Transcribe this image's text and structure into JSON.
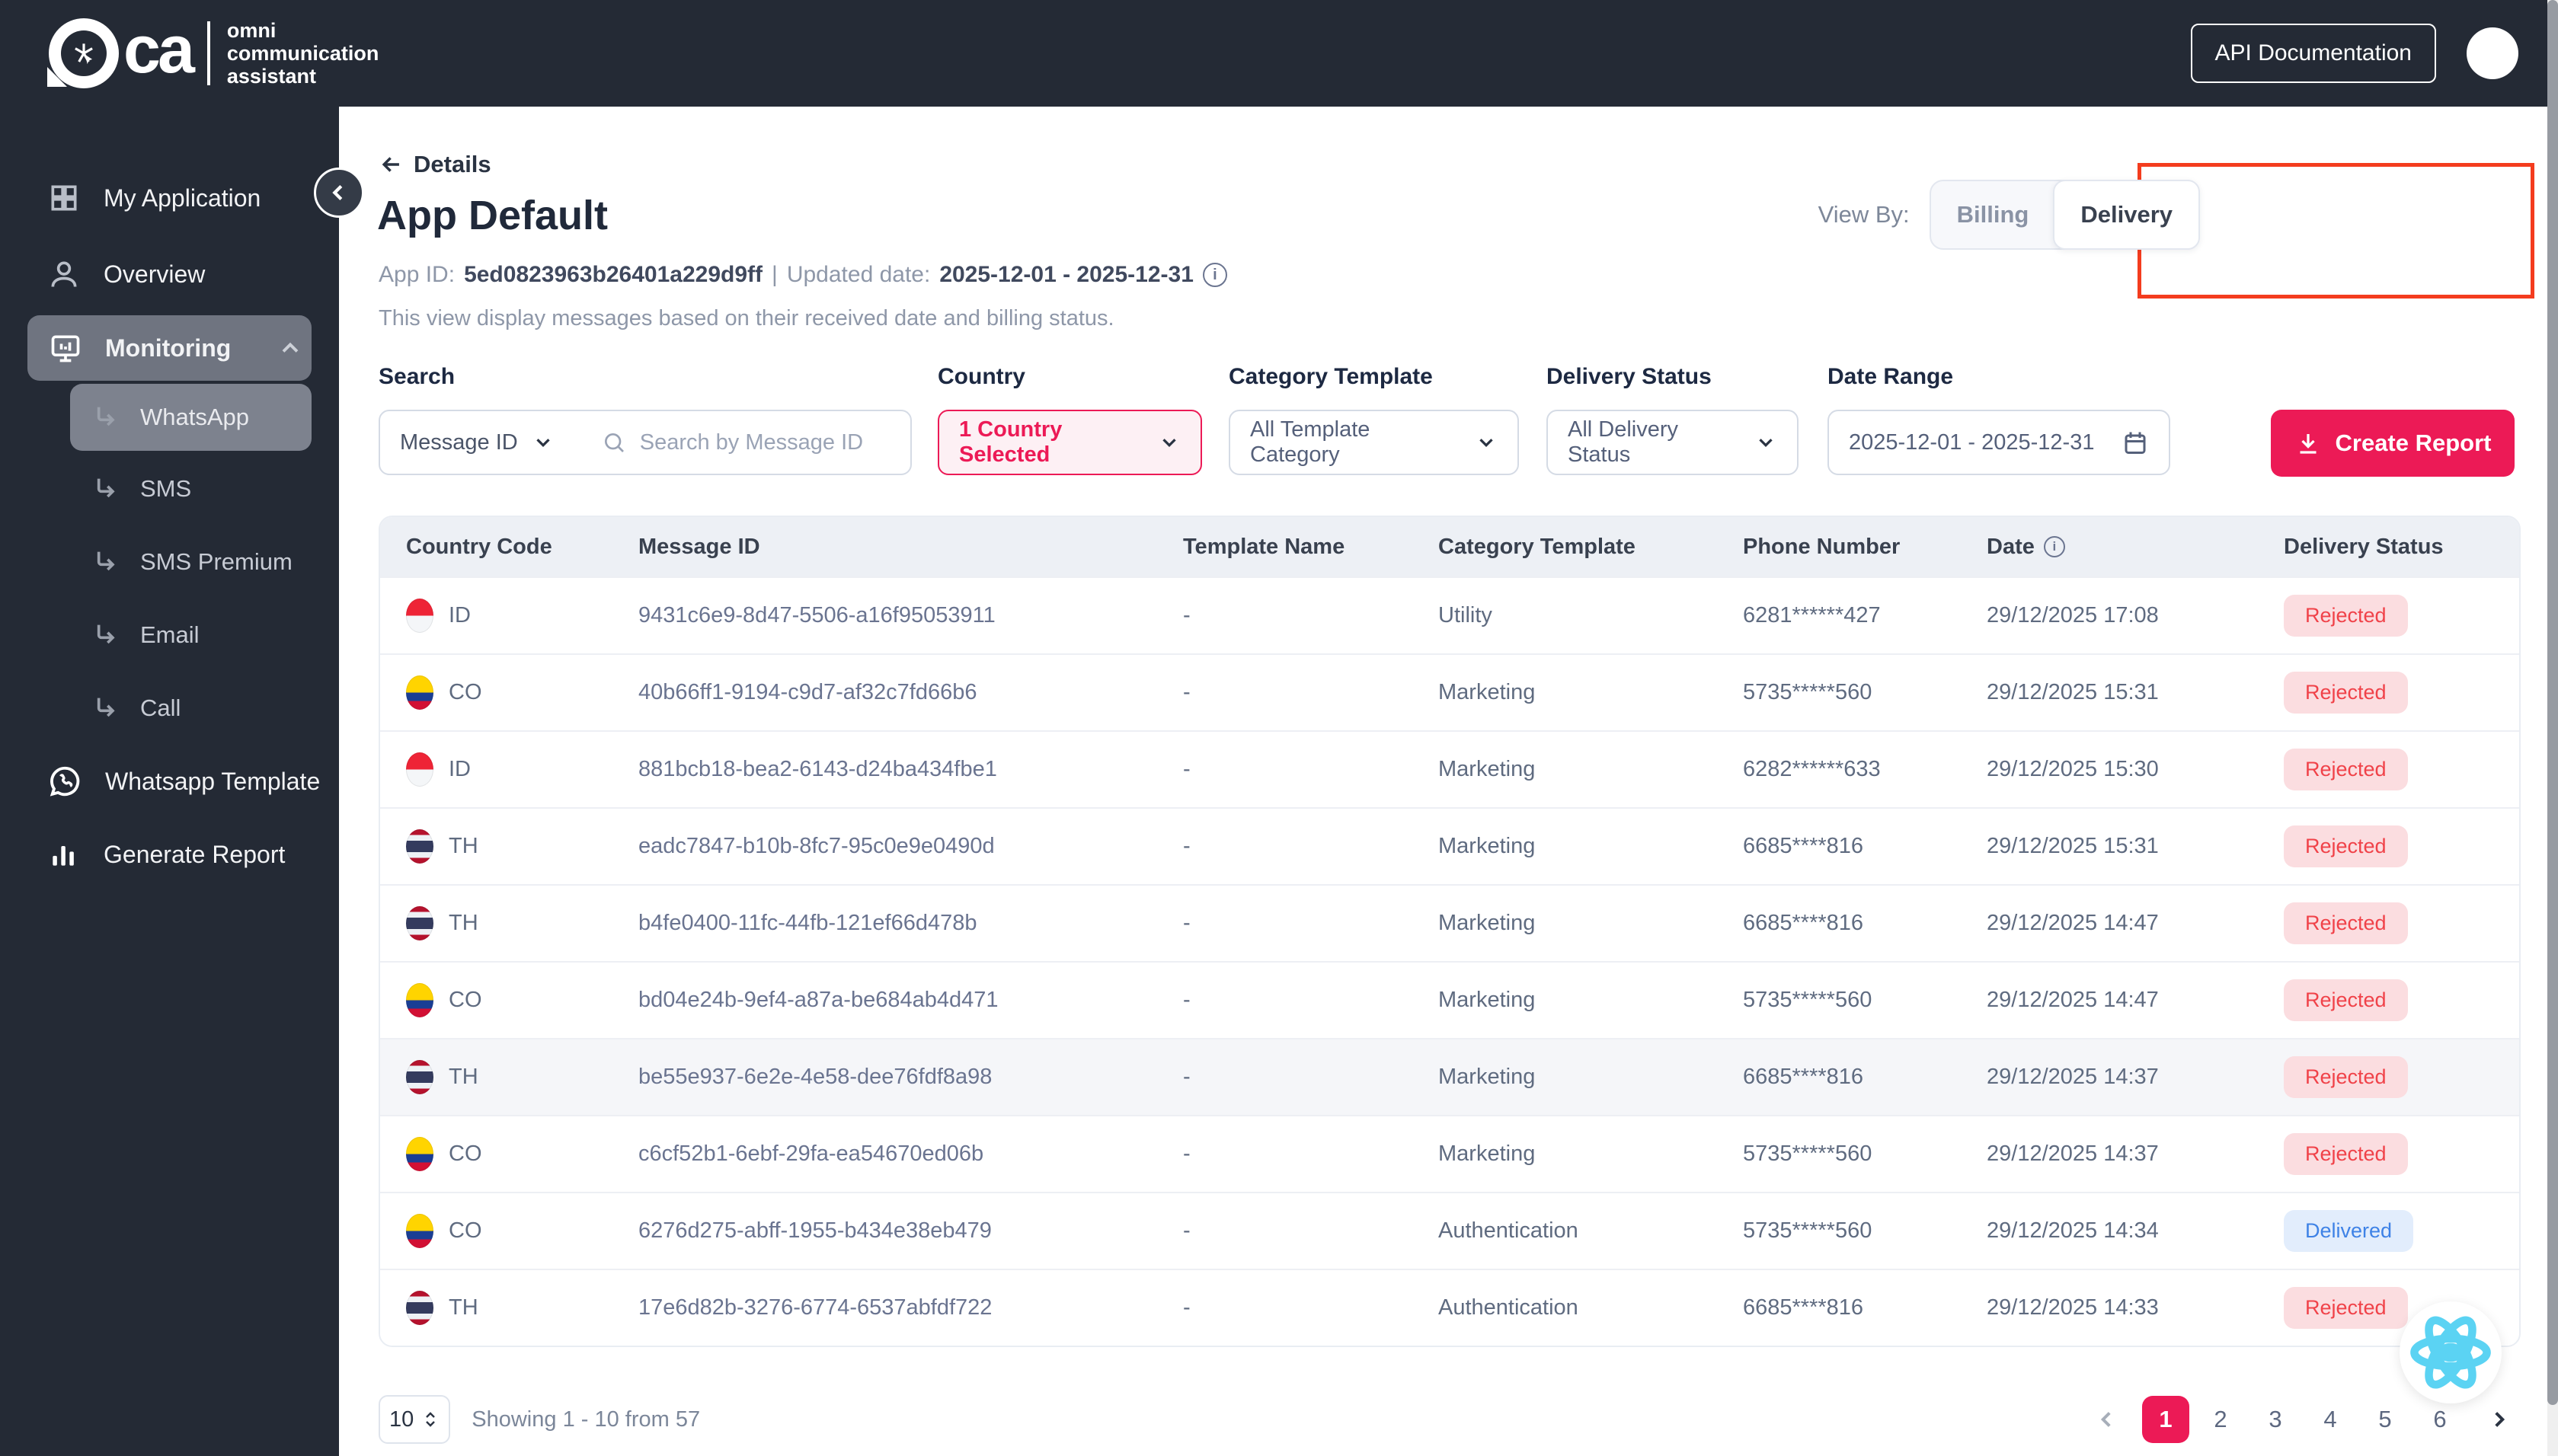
{
  "topbar": {
    "logo_ca": "ca",
    "logo_lines": [
      "omni",
      "communication",
      "assistant"
    ],
    "api_docs_label": "API Documentation"
  },
  "sidebar": {
    "items": [
      {
        "label": "My Application",
        "icon": "grid"
      },
      {
        "label": "Overview",
        "icon": "user"
      },
      {
        "label": "Monitoring",
        "icon": "monitor",
        "active": true
      }
    ],
    "sub_items": [
      "WhatsApp",
      "SMS",
      "SMS Premium",
      "Email",
      "Call"
    ],
    "active_sub": "WhatsApp",
    "bottom_items": [
      {
        "label": "Whatsapp Template",
        "icon": "whatsapp"
      },
      {
        "label": "Generate Report",
        "icon": "chart"
      }
    ]
  },
  "page": {
    "back_label": "Details",
    "title": "App Default",
    "app_id_label": "App ID:",
    "app_id": "5ed0823963b26401a229d9ff",
    "separator": "|",
    "updated_label": "Updated date:",
    "updated_value": "2025-12-01 - 2025-12-31",
    "description": "This view display messages based on their received date and billing status."
  },
  "view_by": {
    "label": "View By:",
    "options": [
      "Billing",
      "Delivery"
    ],
    "selected": "Delivery"
  },
  "filters": {
    "search_label": "Search",
    "search_type": "Message ID",
    "search_placeholder": "Search by Message ID",
    "country_label": "Country",
    "country_value": "1 Country Selected",
    "category_label": "Category Template",
    "category_value": "All Template Category",
    "delivery_label": "Delivery Status",
    "delivery_value": "All Delivery Status",
    "date_label": "Date Range",
    "date_value": "2025-12-01 - 2025-12-31",
    "create_report_label": "Create Report"
  },
  "table": {
    "columns": [
      "Country Code",
      "Message ID",
      "Template Name",
      "Category Template",
      "Phone Number",
      "Date",
      "Delivery Status"
    ],
    "rows": [
      {
        "country": "ID",
        "message_id": "9431c6e9-8d47-5506-a16f95053911",
        "template_name": "-",
        "category": "Utility",
        "phone": "6281******427",
        "date": "29/12/2025 17:08",
        "status": "Rejected",
        "status_type": "rejected",
        "highlighted": false
      },
      {
        "country": "CO",
        "message_id": "40b66ff1-9194-c9d7-af32c7fd66b6",
        "template_name": "-",
        "category": "Marketing",
        "phone": "5735*****560",
        "date": "29/12/2025 15:31",
        "status": "Rejected",
        "status_type": "rejected",
        "highlighted": false
      },
      {
        "country": "ID",
        "message_id": "881bcb18-bea2-6143-d24ba434fbe1",
        "template_name": "-",
        "category": "Marketing",
        "phone": "6282******633",
        "date": "29/12/2025 15:30",
        "status": "Rejected",
        "status_type": "rejected",
        "highlighted": false
      },
      {
        "country": "TH",
        "message_id": "eadc7847-b10b-8fc7-95c0e9e0490d",
        "template_name": "-",
        "category": "Marketing",
        "phone": "6685****816",
        "date": "29/12/2025 15:31",
        "status": "Rejected",
        "status_type": "rejected",
        "highlighted": false
      },
      {
        "country": "TH",
        "message_id": "b4fe0400-11fc-44fb-121ef66d478b",
        "template_name": "-",
        "category": "Marketing",
        "phone": "6685****816",
        "date": "29/12/2025 14:47",
        "status": "Rejected",
        "status_type": "rejected",
        "highlighted": false
      },
      {
        "country": "CO",
        "message_id": "bd04e24b-9ef4-a87a-be684ab4d471",
        "template_name": "-",
        "category": "Marketing",
        "phone": "5735*****560",
        "date": "29/12/2025 14:47",
        "status": "Rejected",
        "status_type": "rejected",
        "highlighted": false
      },
      {
        "country": "TH",
        "message_id": "be55e937-6e2e-4e58-dee76fdf8a98",
        "template_name": "-",
        "category": "Marketing",
        "phone": "6685****816",
        "date": "29/12/2025 14:37",
        "status": "Rejected",
        "status_type": "rejected",
        "highlighted": true
      },
      {
        "country": "CO",
        "message_id": "c6cf52b1-6ebf-29fa-ea54670ed06b",
        "template_name": "-",
        "category": "Marketing",
        "phone": "5735*****560",
        "date": "29/12/2025 14:37",
        "status": "Rejected",
        "status_type": "rejected",
        "highlighted": false
      },
      {
        "country": "CO",
        "message_id": "6276d275-abff-1955-b434e38eb479",
        "template_name": "-",
        "category": "Authentication",
        "phone": "5735*****560",
        "date": "29/12/2025 14:34",
        "status": "Delivered",
        "status_type": "delivered",
        "highlighted": false
      },
      {
        "country": "TH",
        "message_id": "17e6d82b-3276-6774-6537abfdf722",
        "template_name": "-",
        "category": "Authentication",
        "phone": "6685****816",
        "date": "29/12/2025 14:33",
        "status": "Rejected",
        "status_type": "rejected",
        "highlighted": false
      }
    ]
  },
  "pagination": {
    "page_size": "10",
    "summary": "Showing 1 - 10 from 57",
    "pages": [
      "1",
      "2",
      "3",
      "4",
      "5",
      "6"
    ],
    "active_page": "1"
  },
  "colors": {
    "accent": "#ec1a56",
    "rejected_bg": "#fbdde0",
    "rejected_text": "#f04249",
    "delivered_bg": "#e2edfc",
    "delivered_text": "#3e82e6",
    "annotation_red": "#f43c1e",
    "react_logo": "#5bd3f3",
    "sidebar_dark": "#242a35"
  }
}
